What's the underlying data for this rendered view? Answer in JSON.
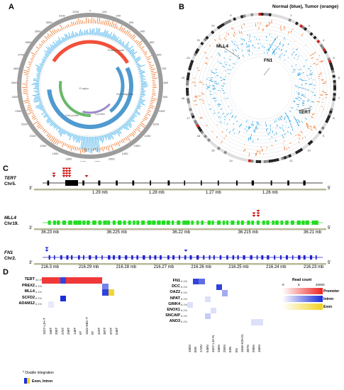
{
  "panels": {
    "a": "A",
    "b": "B",
    "c": "C",
    "d": "D"
  },
  "panel_b": {
    "header": "Normal (blue), Tumor (orange)",
    "genes": [
      "MLL4",
      "FN1",
      "TERT"
    ],
    "chromosomes": [
      "1",
      "2",
      "3",
      "4",
      "5",
      "6",
      "7",
      "8",
      "9",
      "10",
      "11",
      "12",
      "13",
      "14",
      "15",
      "16",
      "17",
      "18",
      "19",
      "20",
      "21",
      "22",
      "X",
      "Y"
    ]
  },
  "panel_a": {
    "arcs": [
      "Protein spaces",
      "Viral integration",
      "E region",
      "S protein",
      "Core protein"
    ],
    "scale": [
      "0",
      "100",
      "200",
      "300",
      "400",
      "500",
      "600",
      "700",
      "800",
      "900",
      "1000",
      "1100",
      "1200",
      "1300",
      "1400",
      "1500",
      "1600",
      "1700",
      "1800",
      "1900",
      "2000",
      "2100",
      "2200",
      "2300",
      "2400",
      "2500",
      "2600",
      "2700",
      "2800",
      "2900",
      "3000",
      "3100",
      "3200"
    ]
  },
  "panel_c": {
    "tracks": [
      {
        "gene": "TERT",
        "chr": "Chr5.",
        "end_left": "3'",
        "end_right": "5'",
        "ticks": [
          "1.29 mb",
          "1.28 mb",
          "1.27 mb",
          "1.26 mb"
        ],
        "color": "#000000"
      },
      {
        "gene": "MLL4",
        "chr": "Chr19.",
        "end_left": "3'",
        "end_right": "5'",
        "ticks": [
          "36.23 mb",
          "36.225 mb",
          "36.22 mb",
          "36.215 mb",
          "36.21 mb"
        ],
        "color": "#22dd22"
      },
      {
        "gene": "FN1",
        "chr": "Chr2.",
        "end_left": "3'",
        "end_right": "5'",
        "ticks": [
          "216.3 mb",
          "216.29 mb",
          "216.28 mb",
          "216.27 mb",
          "216.26 mb",
          "216.25 mb",
          "216.24 mb",
          "216.23 mb"
        ],
        "color": "#2222cc"
      }
    ]
  },
  "panel_d": {
    "left": {
      "rows": [
        {
          "gene": "TERT",
          "pct": "32.3%"
        },
        {
          "gene": "PREX2",
          "pct": "6.1%"
        },
        {
          "gene": "MLL4",
          "pct": "6.1%"
        },
        {
          "gene": "SCFD2",
          "pct": "6.1%"
        },
        {
          "gene": "ADAM12",
          "pct": "6.1%"
        }
      ],
      "cols": [
        "1627-LJH-T",
        "166T",
        "205T",
        "275T",
        "298T",
        "148T",
        "6T",
        "1642-KBC-T",
        "9T",
        "423T",
        "387T",
        "372T",
        "548T"
      ],
      "cells": [
        {
          "r": 0,
          "c": 0,
          "k": "p",
          "v": 0.9
        },
        {
          "r": 0,
          "c": 1,
          "k": "p",
          "v": 0.9
        },
        {
          "r": 0,
          "c": 2,
          "k": "p",
          "v": 0.9
        },
        {
          "r": 0,
          "c": 3,
          "k": "i",
          "v": 0.9
        },
        {
          "r": 0,
          "c": 4,
          "k": "p",
          "v": 0.9
        },
        {
          "r": 0,
          "c": 5,
          "k": "p",
          "v": 0.9
        },
        {
          "r": 0,
          "c": 6,
          "k": "p",
          "v": 0.9
        },
        {
          "r": 0,
          "c": 7,
          "k": "p",
          "v": 0.9
        },
        {
          "r": 0,
          "c": 8,
          "k": "p",
          "v": 0.9
        },
        {
          "r": 0,
          "c": 9,
          "k": "p",
          "v": 0.9
        },
        {
          "r": 1,
          "c": 10,
          "k": "i",
          "v": 0.6
        },
        {
          "r": 2,
          "c": 10,
          "k": "i",
          "v": 0.9
        },
        {
          "r": 2,
          "c": 11,
          "k": "e",
          "v": 0.9
        },
        {
          "r": 3,
          "c": 3,
          "k": "i",
          "v": 1.0
        },
        {
          "r": 4,
          "c": 1,
          "k": "i",
          "v": 0.1
        }
      ]
    },
    "right": {
      "rows": [
        {
          "gene": "FN1",
          "pct": "9.1%"
        },
        {
          "gene": "DCC",
          "pct": "6.1%"
        },
        {
          "gene": "OAZ2",
          "pct": "6.1%"
        },
        {
          "gene": "NPAT",
          "pct": "6.1%"
        },
        {
          "gene": "GRIK4",
          "pct": "6.1%"
        },
        {
          "gene": "ENOX1",
          "pct": "6.1%"
        },
        {
          "gene": "SNCAIP",
          "pct": "6.1%"
        },
        {
          "gene": "ANO3",
          "pct": "6.1%"
        }
      ],
      "cols": [
        "166N",
        "65N",
        "174N",
        "548N",
        "1627-LJH-N",
        "166N",
        "255N",
        "63N",
        "6N",
        "1646-KSH-N",
        "387N",
        "298N",
        "166N"
      ],
      "cells": [
        {
          "r": 0,
          "c": 1,
          "k": "i",
          "v": 0.9
        },
        {
          "r": 0,
          "c": 2,
          "k": "i",
          "v": 0.7
        },
        {
          "r": 1,
          "c": 5,
          "k": "i",
          "v": 0.9
        },
        {
          "r": 2,
          "c": 6,
          "k": "i",
          "v": 0.4
        },
        {
          "r": 3,
          "c": 3,
          "k": "i",
          "v": 0.15
        },
        {
          "r": 4,
          "c": 0,
          "k": "i",
          "v": 0.15
        },
        {
          "r": 5,
          "c": 4,
          "k": "i",
          "v": 0.15
        },
        {
          "r": 6,
          "c": 3,
          "k": "i",
          "v": 0.25
        },
        {
          "r": 7,
          "c": 11,
          "k": "i",
          "v": 0.15
        },
        {
          "r": 7,
          "c": 12,
          "k": "i",
          "v": 0.15
        }
      ]
    },
    "legend": {
      "title": "Read count",
      "min": "0",
      "mid": "5",
      "mid2": "20000",
      "items": [
        "Promoter",
        "Intron",
        "Exon"
      ]
    },
    "footnote": {
      "double": "* Double integration",
      "exon_intron": "Exon, Intron"
    }
  },
  "colors": {
    "promoter": "#ee2222",
    "intron": "#1a2ed8",
    "exon": "#f1d11f",
    "normal": "#1fa0e6",
    "tumor": "#f07020"
  }
}
